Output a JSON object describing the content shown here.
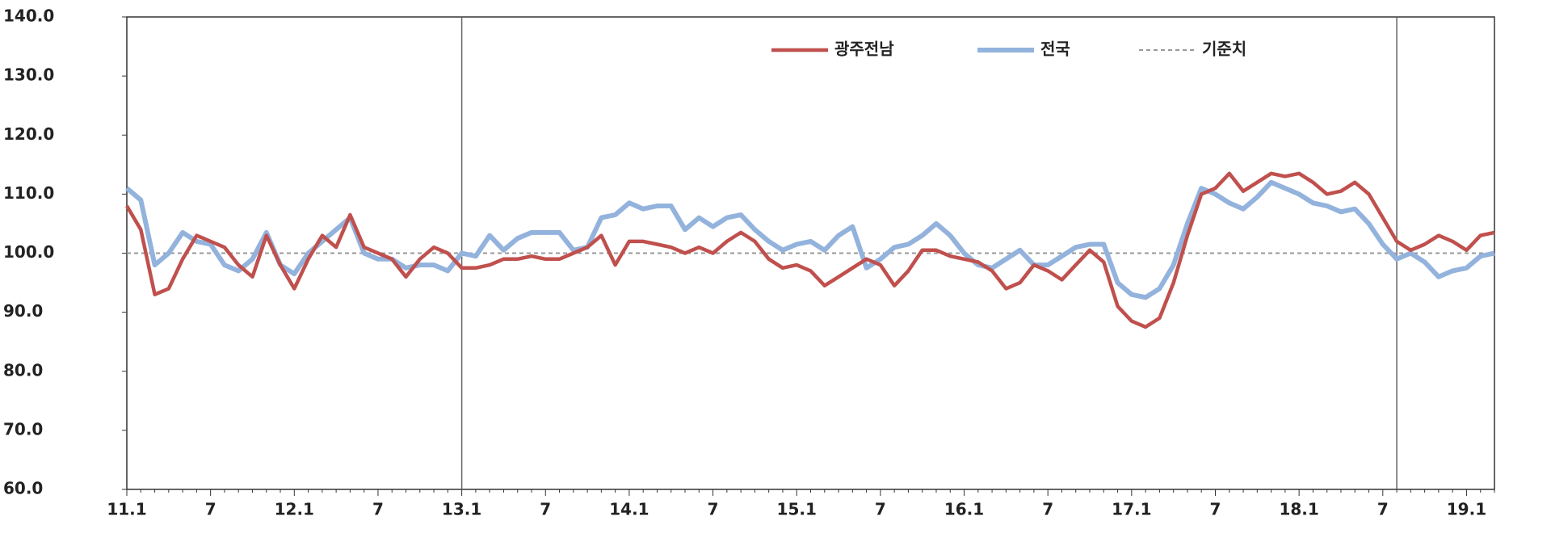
{
  "chart_data": {
    "type": "line",
    "categories": [
      "11.1",
      null,
      null,
      null,
      null,
      null,
      "7",
      null,
      null,
      null,
      null,
      null,
      "12.1",
      null,
      null,
      null,
      null,
      null,
      "7",
      null,
      null,
      null,
      null,
      null,
      "13.1",
      null,
      null,
      null,
      null,
      null,
      "7",
      null,
      null,
      null,
      null,
      null,
      "14.1",
      null,
      null,
      null,
      null,
      null,
      "7",
      null,
      null,
      null,
      null,
      null,
      "15.1",
      null,
      null,
      null,
      null,
      null,
      "7",
      null,
      null,
      null,
      null,
      null,
      "16.1",
      null,
      null,
      null,
      null,
      null,
      "7",
      null,
      null,
      null,
      null,
      null,
      "17.1",
      null,
      null,
      null,
      null,
      null,
      "7",
      null,
      null,
      null,
      null,
      null,
      "18.1",
      null,
      null,
      null,
      null,
      null,
      "7",
      null,
      null,
      null,
      null,
      null,
      "19.1",
      null,
      null
    ],
    "series": [
      {
        "name": "광주전남",
        "color": "#c0504d",
        "values": [
          108,
          104,
          93,
          94,
          99,
          103,
          102,
          101,
          98,
          96,
          103,
          98,
          94,
          99,
          103,
          101,
          106.5,
          101,
          100,
          99,
          96,
          99,
          101,
          100,
          97.5,
          97.5,
          98,
          99,
          99,
          99.5,
          99,
          99,
          100,
          101,
          103,
          98,
          102,
          102,
          101.5,
          101,
          100,
          101,
          100,
          102,
          103.5,
          102,
          99,
          97.5,
          98,
          97,
          94.5,
          96,
          97.5,
          99,
          98,
          94.5,
          97,
          100.5,
          100.5,
          99.5,
          99,
          98.5,
          97,
          94,
          95,
          98,
          97,
          95.5,
          98,
          100.5,
          98.5,
          91,
          88.5,
          87.5,
          89,
          95,
          103,
          110,
          111,
          113.5,
          110.5,
          112,
          113.5,
          113,
          113.5,
          112,
          110,
          110.5,
          112,
          110,
          106,
          102,
          100.5,
          101.5,
          103,
          102,
          100.5,
          103,
          103.5
        ]
      },
      {
        "name": "전국",
        "color": "#93b3dd",
        "values": [
          111,
          109,
          98,
          100,
          103.5,
          102,
          101.5,
          98,
          97,
          99,
          103.5,
          98,
          96.5,
          100,
          102,
          104,
          106,
          100,
          99,
          99,
          97.5,
          98,
          98,
          97,
          100,
          99.5,
          103,
          100.5,
          102.5,
          103.5,
          103.5,
          103.5,
          100.5,
          101,
          106,
          106.5,
          108.5,
          107.5,
          108,
          108,
          104,
          106,
          104.5,
          106,
          106.5,
          104,
          102,
          100.5,
          101.5,
          102,
          100.5,
          103,
          104.5,
          97.5,
          99,
          101,
          101.5,
          103,
          105,
          103,
          100,
          98,
          97.5,
          99,
          100.5,
          98,
          98,
          99.5,
          101,
          101.5,
          101.5,
          95,
          93,
          92.5,
          94,
          98,
          105,
          111,
          110,
          108.5,
          107.5,
          109.5,
          112,
          111,
          110,
          108.5,
          108,
          107,
          107.5,
          105,
          101.5,
          99,
          100,
          98.5,
          96,
          97,
          97.5,
          99.5,
          100
        ]
      }
    ],
    "reference": {
      "name": "기준치",
      "value": 100,
      "color": "#999999"
    },
    "ylim": [
      60,
      140
    ],
    "yticks": [
      {
        "value": 60,
        "label": "60.0"
      },
      {
        "value": 70,
        "label": "70.0"
      },
      {
        "value": 80,
        "label": "80.0"
      },
      {
        "value": 90,
        "label": "90.0"
      },
      {
        "value": 100,
        "label": "100.0"
      },
      {
        "value": 110,
        "label": "110.0"
      },
      {
        "value": 120,
        "label": "120.0"
      },
      {
        "value": 130,
        "label": "130.0"
      },
      {
        "value": 140,
        "label": "140.0"
      }
    ]
  }
}
